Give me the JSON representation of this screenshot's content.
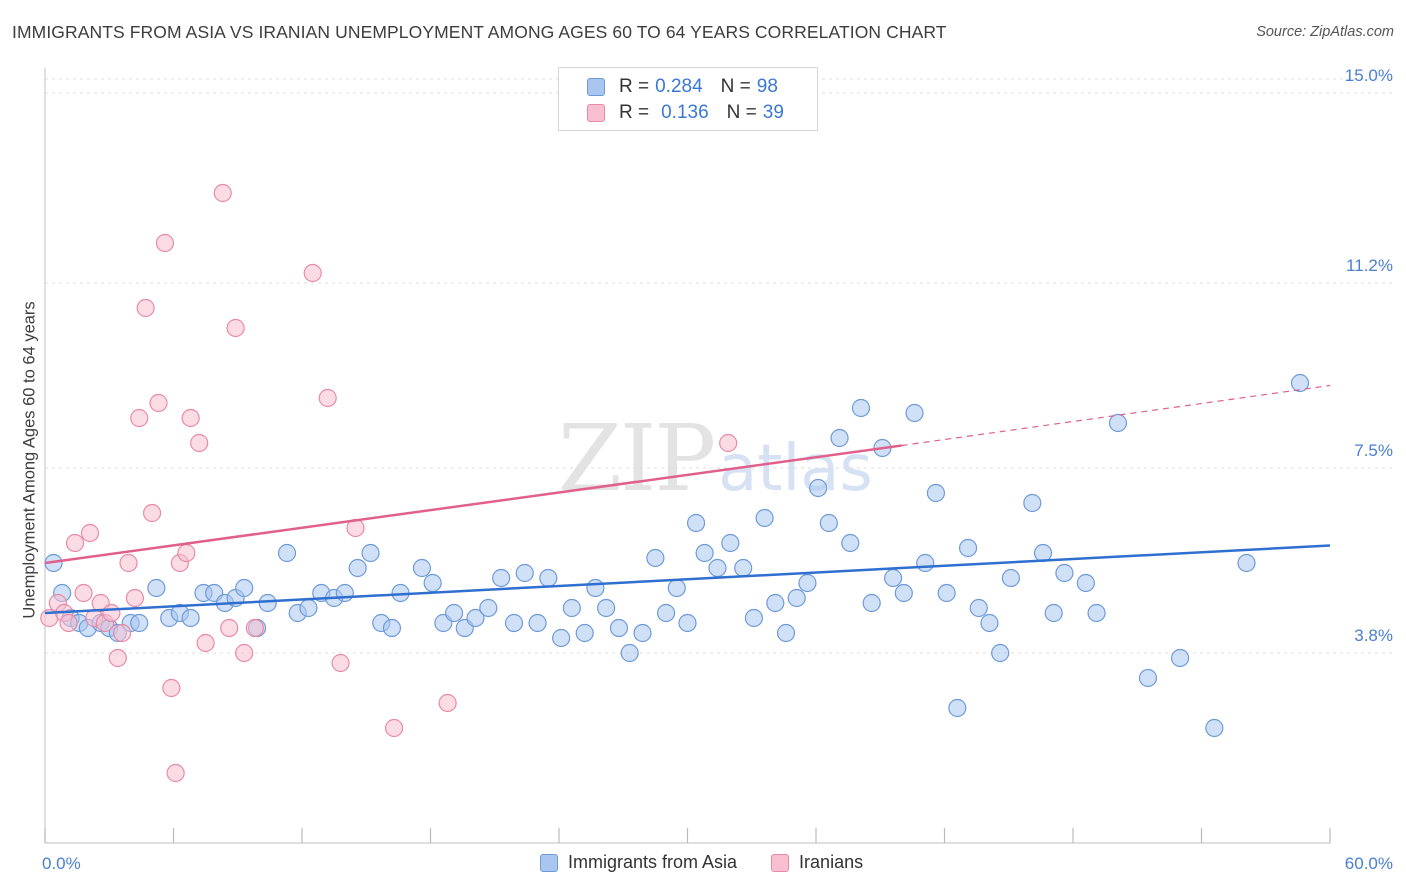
{
  "header": {
    "title": "IMMIGRANTS FROM ASIA VS IRANIAN UNEMPLOYMENT AMONG AGES 60 TO 64 YEARS CORRELATION CHART",
    "source": "Source: ZipAtlas.com"
  },
  "watermark": {
    "zip": "ZIP",
    "atlas": "atlas"
  },
  "legend": {
    "rows": [
      {
        "r_label": "R =",
        "r_value": "0.284",
        "n_label": "N =",
        "n_value": "98",
        "color": "#a8c6f0",
        "border": "#6f9ad8"
      },
      {
        "r_label": "R =",
        "r_value": "0.136",
        "n_label": "N =",
        "n_value": "39",
        "color": "#f7bfd0",
        "border": "#e88aa8"
      }
    ]
  },
  "bottom_legend": {
    "items": [
      {
        "label": "Immigrants from Asia",
        "color": "#a8c6f0",
        "border": "#6f9ad8"
      },
      {
        "label": "Iranians",
        "color": "#f7bfd0",
        "border": "#e88aa8"
      }
    ]
  },
  "chart_data": {
    "type": "scatter",
    "title": "IMMIGRANTS FROM ASIA VS IRANIAN UNEMPLOYMENT AMONG AGES 60 TO 64 YEARS CORRELATION CHART",
    "xlabel": "",
    "ylabel": "Unemployment Among Ages 60 to 64 years",
    "xlim": [
      0,
      60
    ],
    "ylim": [
      0,
      15.5
    ],
    "x_tick_labels": [
      "0.0%",
      "60.0%"
    ],
    "y_ticks": [
      3.8,
      7.5,
      11.2,
      15.0
    ],
    "y_tick_labels": [
      "3.8%",
      "7.5%",
      "11.2%",
      "15.0%"
    ],
    "grid": true,
    "series": [
      {
        "name": "Immigrants from Asia",
        "color": "#a8c6f0",
        "stroke": "#6f9ad8",
        "trend": {
          "x0": 0,
          "y0": 4.6,
          "x1": 60,
          "y1": 5.95,
          "color": "#2f6fd0"
        },
        "points": [
          [
            0.4,
            5.6
          ],
          [
            0.8,
            5.0
          ],
          [
            1.2,
            4.5
          ],
          [
            1.6,
            4.4
          ],
          [
            2.0,
            4.3
          ],
          [
            2.6,
            4.4
          ],
          [
            3.0,
            4.3
          ],
          [
            3.4,
            4.2
          ],
          [
            4.0,
            4.4
          ],
          [
            4.4,
            4.4
          ],
          [
            5.2,
            5.1
          ],
          [
            5.8,
            4.5
          ],
          [
            6.3,
            4.6
          ],
          [
            6.8,
            4.5
          ],
          [
            7.4,
            5.0
          ],
          [
            7.9,
            5.0
          ],
          [
            8.4,
            4.8
          ],
          [
            8.9,
            4.9
          ],
          [
            9.3,
            5.1
          ],
          [
            9.9,
            4.3
          ],
          [
            10.4,
            4.8
          ],
          [
            11.3,
            5.8
          ],
          [
            11.8,
            4.6
          ],
          [
            12.3,
            4.7
          ],
          [
            12.9,
            5.0
          ],
          [
            13.5,
            4.9
          ],
          [
            14.0,
            5.0
          ],
          [
            14.6,
            5.5
          ],
          [
            15.2,
            5.8
          ],
          [
            15.7,
            4.4
          ],
          [
            16.2,
            4.3
          ],
          [
            16.6,
            5.0
          ],
          [
            17.6,
            5.5
          ],
          [
            18.1,
            5.2
          ],
          [
            18.6,
            4.4
          ],
          [
            19.1,
            4.6
          ],
          [
            19.6,
            4.3
          ],
          [
            20.1,
            4.5
          ],
          [
            20.7,
            4.7
          ],
          [
            21.3,
            5.3
          ],
          [
            21.9,
            4.4
          ],
          [
            22.4,
            5.4
          ],
          [
            23.0,
            4.4
          ],
          [
            23.5,
            5.3
          ],
          [
            24.1,
            4.1
          ],
          [
            24.6,
            4.7
          ],
          [
            25.2,
            4.2
          ],
          [
            25.7,
            5.1
          ],
          [
            26.2,
            4.7
          ],
          [
            26.8,
            4.3
          ],
          [
            27.3,
            3.8
          ],
          [
            27.9,
            4.2
          ],
          [
            28.5,
            5.7
          ],
          [
            29.0,
            4.6
          ],
          [
            29.5,
            5.1
          ],
          [
            30.0,
            4.4
          ],
          [
            30.4,
            6.4
          ],
          [
            30.8,
            5.8
          ],
          [
            31.4,
            5.5
          ],
          [
            32.0,
            6.0
          ],
          [
            32.6,
            5.5
          ],
          [
            33.1,
            4.5
          ],
          [
            33.6,
            6.5
          ],
          [
            34.1,
            4.8
          ],
          [
            34.6,
            4.2
          ],
          [
            35.1,
            4.9
          ],
          [
            35.6,
            5.2
          ],
          [
            36.1,
            7.1
          ],
          [
            36.6,
            6.4
          ],
          [
            37.1,
            8.1
          ],
          [
            37.6,
            6.0
          ],
          [
            38.1,
            8.7
          ],
          [
            38.6,
            4.8
          ],
          [
            39.1,
            7.9
          ],
          [
            39.6,
            5.3
          ],
          [
            40.1,
            5.0
          ],
          [
            40.6,
            8.6
          ],
          [
            41.1,
            5.6
          ],
          [
            41.6,
            7.0
          ],
          [
            42.1,
            5.0
          ],
          [
            42.6,
            2.7
          ],
          [
            43.1,
            5.9
          ],
          [
            43.6,
            4.7
          ],
          [
            44.1,
            4.4
          ],
          [
            44.6,
            3.8
          ],
          [
            45.1,
            5.3
          ],
          [
            46.1,
            6.8
          ],
          [
            46.6,
            5.8
          ],
          [
            47.1,
            4.6
          ],
          [
            47.6,
            5.4
          ],
          [
            48.6,
            5.2
          ],
          [
            49.1,
            4.6
          ],
          [
            50.1,
            8.4
          ],
          [
            51.5,
            3.3
          ],
          [
            53.0,
            3.7
          ],
          [
            54.6,
            2.3
          ],
          [
            56.1,
            5.6
          ],
          [
            58.6,
            9.2
          ]
        ]
      },
      {
        "name": "Iranians",
        "color": "#f7bfd0",
        "stroke": "#e88aa8",
        "trend": {
          "x0": 0,
          "y0": 5.6,
          "x1": 40,
          "y1": 7.95,
          "color": "#e0608b"
        },
        "trend_dashed": {
          "x0": 40,
          "y0": 7.95,
          "x1": 60,
          "y1": 9.15
        },
        "points": [
          [
            0.2,
            4.5
          ],
          [
            0.6,
            4.8
          ],
          [
            0.9,
            4.6
          ],
          [
            1.1,
            4.4
          ],
          [
            1.4,
            6.0
          ],
          [
            1.8,
            5.0
          ],
          [
            2.1,
            6.2
          ],
          [
            2.3,
            4.5
          ],
          [
            2.6,
            4.8
          ],
          [
            2.8,
            4.4
          ],
          [
            3.1,
            4.6
          ],
          [
            3.4,
            3.7
          ],
          [
            3.6,
            4.2
          ],
          [
            3.9,
            5.6
          ],
          [
            4.2,
            4.9
          ],
          [
            4.4,
            8.5
          ],
          [
            4.7,
            10.7
          ],
          [
            5.0,
            6.6
          ],
          [
            5.3,
            8.8
          ],
          [
            5.6,
            12.0
          ],
          [
            5.9,
            3.1
          ],
          [
            6.1,
            1.4
          ],
          [
            6.3,
            5.6
          ],
          [
            6.6,
            5.8
          ],
          [
            6.8,
            8.5
          ],
          [
            7.2,
            8.0
          ],
          [
            7.5,
            4.0
          ],
          [
            8.3,
            13.0
          ],
          [
            8.6,
            4.3
          ],
          [
            8.9,
            10.3
          ],
          [
            9.3,
            3.8
          ],
          [
            9.8,
            4.3
          ],
          [
            12.5,
            11.4
          ],
          [
            13.2,
            8.9
          ],
          [
            13.8,
            3.6
          ],
          [
            14.5,
            6.3
          ],
          [
            16.3,
            2.3
          ],
          [
            18.8,
            2.8
          ],
          [
            31.9,
            8.0
          ]
        ]
      }
    ]
  }
}
